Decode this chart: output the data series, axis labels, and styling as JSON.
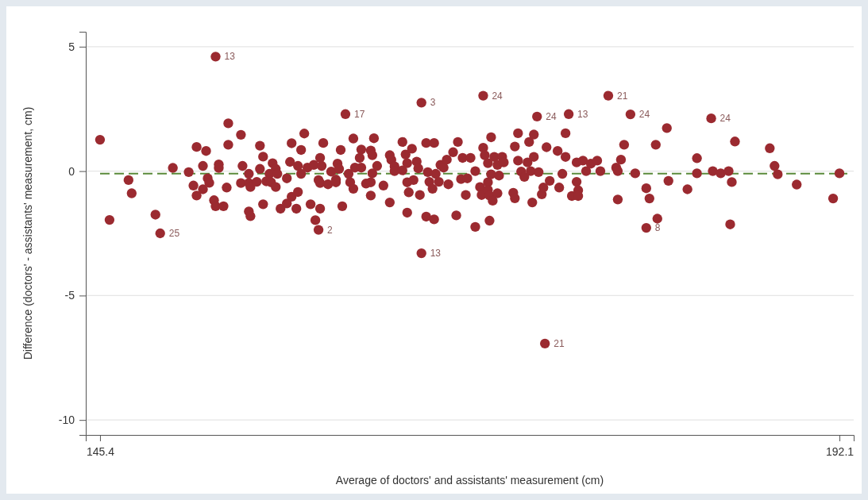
{
  "chart_data": {
    "type": "scatter",
    "xlabel": "Average of  doctors' and assistants' measurement (cm)",
    "ylabel": "Difference (doctors' - assistants' measurement, cm)",
    "xlim": [
      144.5,
      193.0
    ],
    "ylim": [
      -10.6,
      5.6
    ],
    "xticks": [
      145.4,
      192.1
    ],
    "yticks": [
      5,
      0,
      -5,
      -10
    ],
    "grid": "y",
    "marker": "circle",
    "series": [
      {
        "color": "#9b2a30",
        "x": [
          145.4,
          146.0,
          147.2,
          147.4,
          148.9,
          149.2,
          150.0,
          151.0,
          151.5,
          151.3,
          151.5,
          151.9,
          151.9,
          152.1,
          152.2,
          152.3,
          152.6,
          152.7,
          152.9,
          152.9,
          153.2,
          153.4,
          153.5,
          153.5,
          154.3,
          154.3,
          154.4,
          154.8,
          154.8,
          154.9,
          154.8,
          154.9,
          155.3,
          155.5,
          155.5,
          155.7,
          155.7,
          156.1,
          155.9,
          156.3,
          156.5,
          156.6,
          156.2,
          156.5,
          156.8,
          157.2,
          157.2,
          157.4,
          157.5,
          157.5,
          157.8,
          157.9,
          157.9,
          158.1,
          158.1,
          158.3,
          158.5,
          158.7,
          158.9,
          159.0,
          159.2,
          159.2,
          159.3,
          159.3,
          159.3,
          159.4,
          159.5,
          159.8,
          160.0,
          160.3,
          160.3,
          160.4,
          160.5,
          160.6,
          160.7,
          160.9,
          161.1,
          161.2,
          161.4,
          161.4,
          161.5,
          161.8,
          161.9,
          161.9,
          162.2,
          162.5,
          162.5,
          162.5,
          162.6,
          162.7,
          162.6,
          162.9,
          163.3,
          163.7,
          163.7,
          163.8,
          164.0,
          164.0,
          164.5,
          164.5,
          164.7,
          164.8,
          164.8,
          164.9,
          164.8,
          165.1,
          165.2,
          165.4,
          165.5,
          165.6,
          165.7,
          165.7,
          166.0,
          166.0,
          166.1,
          166.2,
          166.4,
          166.5,
          166.5,
          166.6,
          166.8,
          166.9,
          167.1,
          167.3,
          167.4,
          167.7,
          167.9,
          168.0,
          168.2,
          168.3,
          168.5,
          168.6,
          168.8,
          169.1,
          169.1,
          169.4,
          169.5,
          169.6,
          169.7,
          169.9,
          169.9,
          169.9,
          170.0,
          170.0,
          170.1,
          170.1,
          170.2,
          170.3,
          170.5,
          170.6,
          170.8,
          170.9,
          170.5,
          171.5,
          171.6,
          171.6,
          171.8,
          171.8,
          172.0,
          172.2,
          172.4,
          172.5,
          172.6,
          172.7,
          172.8,
          172.8,
          173.0,
          173.1,
          173.3,
          173.4,
          173.6,
          173.8,
          174.3,
          174.4,
          174.6,
          174.8,
          174.8,
          175.0,
          175.2,
          175.5,
          175.5,
          175.6,
          175.6,
          175.9,
          176.1,
          176.4,
          176.8,
          177.0,
          178.0,
          178.1,
          178.1,
          178.3,
          178.5,
          178.9,
          179.2,
          179.9,
          180.1,
          179.9,
          180.6,
          180.5,
          181.2,
          181.3,
          182.5,
          183.1,
          183.1,
          184.0,
          184.1,
          184.6,
          185.1,
          185.3,
          185.2,
          185.5,
          187.7,
          188.0,
          188.2,
          189.4,
          191.7,
          192.1,
          152.7,
          169.6,
          177.5,
          173.5
        ],
        "values": [
          1.26,
          -1.96,
          -0.36,
          -0.89,
          -1.75,
          -2.5,
          0.13,
          -0.04,
          0.97,
          -0.58,
          -0.98,
          -0.73,
          0.21,
          0.81,
          -0.29,
          -0.47,
          -1.17,
          -1.41,
          0.27,
          0.13,
          -1.41,
          -0.66,
          1.06,
          1.92,
          1.46,
          -0.48,
          0.21,
          -0.11,
          -0.48,
          -0.64,
          -1.62,
          -1.81,
          -0.43,
          1.02,
          0.09,
          0.58,
          -1.33,
          -0.11,
          -0.41,
          0.32,
          0.09,
          -0.11,
          -0.45,
          -0.64,
          -1.51,
          -0.29,
          -1.3,
          0.37,
          1.12,
          -1.03,
          -1.51,
          -0.84,
          0.21,
          0.85,
          -0.11,
          1.51,
          0.14,
          -1.33,
          0.25,
          -1.97,
          -2.36,
          -0.36,
          -0.48,
          -1.51,
          0.53,
          0.21,
          1.13,
          -0.53,
          -0.02,
          -0.34,
          -0.45,
          0.3,
          0.09,
          0.85,
          -1.41,
          2.29,
          -0.11,
          -0.45,
          -0.71,
          1.31,
          0.14,
          0.53,
          0.87,
          0.14,
          -0.5,
          -0.45,
          -0.98,
          0.83,
          0.64,
          1.32,
          -0.09,
          0.21,
          -0.58,
          -1.26,
          0.64,
          0.45,
          0.19,
          0.0,
          1.17,
          0.03,
          0.67,
          0.32,
          -0.45,
          -0.85,
          -1.67,
          0.9,
          -0.36,
          0.38,
          0.11,
          -0.96,
          2.75,
          -3.3,
          -1.83,
          1.13,
          -0.04,
          -0.43,
          -0.71,
          1.13,
          -1.94,
          -0.11,
          -0.43,
          0.25,
          0.14,
          0.46,
          -0.53,
          0.76,
          -1.78,
          1.17,
          -0.32,
          0.53,
          -0.96,
          -0.29,
          0.53,
          0.0,
          -2.24,
          -0.64,
          -0.96,
          0.94,
          0.64,
          0.32,
          -0.45,
          -0.75,
          -0.98,
          -1.99,
          1.36,
          -0.13,
          -1.19,
          0.57,
          0.25,
          -0.18,
          0.57,
          0.35,
          -0.89,
          -0.87,
          -1.09,
          0.99,
          1.52,
          0.42,
          -0.02,
          -0.23,
          0.35,
          1.17,
          0.0,
          -1.26,
          0.57,
          1.47,
          2.19,
          -0.04,
          -0.93,
          -0.66,
          0.96,
          -0.39,
          0.81,
          -0.66,
          -0.11,
          0.57,
          1.52,
          2.29,
          -1.0,
          0.35,
          -0.43,
          -0.77,
          -1.0,
          0.42,
          0.0,
          0.3,
          0.42,
          0.0,
          0.14,
          0.0,
          -1.14,
          0.46,
          1.06,
          2.28,
          -0.09,
          -0.69,
          -1.1,
          -2.28,
          -1.91,
          1.06,
          1.73,
          -0.39,
          -0.73,
          0.52,
          -0.09,
          2.12,
          0.0,
          -0.09,
          0.0,
          -0.44,
          -2.14,
          1.19,
          0.92,
          0.21,
          -0.13,
          -0.54,
          -1.1,
          -0.09,
          4.6,
          3.03,
          3.03,
          -6.93
        ]
      }
    ],
    "ref_lines": [
      {
        "axis": "y",
        "value": -0.1,
        "color": "#5a8a3a",
        "line_style": "dashed"
      }
    ],
    "annotations": [
      {
        "text": "13",
        "x": 152.7,
        "y": 4.6
      },
      {
        "text": "25",
        "x": 149.2,
        "y": -2.5
      },
      {
        "text": "2",
        "x": 159.2,
        "y": -2.36
      },
      {
        "text": "17",
        "x": 160.9,
        "y": 2.29
      },
      {
        "text": "3",
        "x": 165.7,
        "y": 2.75
      },
      {
        "text": "13",
        "x": 165.7,
        "y": -3.3
      },
      {
        "text": "24",
        "x": 169.6,
        "y": 3.03
      },
      {
        "text": "24",
        "x": 173.0,
        "y": 2.19
      },
      {
        "text": "21",
        "x": 173.5,
        "y": -6.93
      },
      {
        "text": "13",
        "x": 175.0,
        "y": 2.29
      },
      {
        "text": "21",
        "x": 177.5,
        "y": 3.03
      },
      {
        "text": "24",
        "x": 178.9,
        "y": 2.28
      },
      {
        "text": "8",
        "x": 179.9,
        "y": -2.28
      },
      {
        "text": "24",
        "x": 184.0,
        "y": 2.12
      }
    ]
  }
}
